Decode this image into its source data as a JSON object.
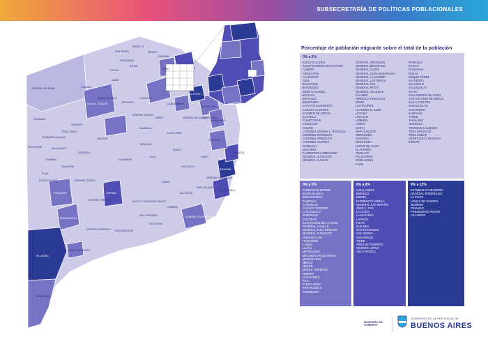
{
  "header": {
    "title": "SUBSECRETARÍA DE POLÍTICAS POBLACIONALES"
  },
  "legend": {
    "title": "Porcentaje de población migrante sobre el total de la población",
    "categories": [
      {
        "range": "0% a 2%",
        "color": "#cdcbe8",
        "columns": [
          [
            "ADOLFO ALSINA",
            "ADOLFO GONZALES CHAVES",
            "ALBERTI",
            "ARRECIFES",
            "AYACUCHO",
            "AZUL",
            "BALCARCE",
            "BARADERO",
            "BENITO JUÁREZ",
            "BOLÍVAR",
            "BRAGADO",
            "BRANDSEN",
            "CAPITÁN SARMIENTO",
            "CARLOS CASARES",
            "CARMEN DE ARECO",
            "CASTELLI",
            "CHASCOMÚS",
            "CHIVILCOY",
            "COLÓN",
            "CORONEL MARINA L. ROSALES",
            "CORONEL DORREGO",
            "CORONEL PRINGLES",
            "CORONEL SUÁREZ",
            "DAIREAUX",
            "DOLORES",
            "FLORENTINO AMEGHINO",
            "GENERAL ALVARADO",
            "GENERAL ALVEAR"
          ],
          [
            "GENERAL ARENALES",
            "GENERAL BELGRANO",
            "GENERAL GUIDO",
            "GENERAL JUAN MADARIAGA",
            "GENERAL LA MADRID",
            "GENERAL LAS HERAS",
            "GENERAL PAZ",
            "GENERAL PINTO",
            "GENERAL VILLEGAS",
            "GUAMINÍ",
            "HIPÓLITO YRIGOYEN",
            "JUNÍN",
            "LAS FLORES",
            "LEANDRO N. ALEM",
            "LOZAMA",
            "LINCOLN",
            "LOBERÍA",
            "LOBOS",
            "MAIPÚ",
            "MAR CHIQUITA",
            "MERCEDES",
            "NAVARRO",
            "NECOCHEA",
            "NUEVE DE JULIO",
            "OLAVARRÍA",
            "PEHUAJÓ",
            "PELLEGRINI",
            "PERGAMINO",
            "PUÁN"
          ],
          [
            "RAMALLO",
            "RAUCH",
            "RIVADAVIA",
            "ROJAS",
            "ROQUE PÉREZ",
            "SAAVEDRA",
            "SALADILLO",
            "SALLIQUELÓ",
            "SALTO",
            "SAN ANDRÉS DE GILES",
            "SAN ANTONIO DE ARECO",
            "SAN CAYETANO",
            "SAN NICOLÁS",
            "SAN PEDRO",
            "SUIPACHA",
            "TANDIL",
            "TAPALQUÉ",
            "TORDILLO",
            "TRENQUE LAUQUEN",
            "TRES ARROYOS",
            "TRES LOMAS",
            "VEINTICINCO DE MAYO",
            "ZÁRATE"
          ]
        ]
      },
      {
        "range": "3% a 5%",
        "color": "#7672c4",
        "columns": [
          [
            "ALMIRANTE BROWN",
            "BAHÍA BLANCA",
            "BERAZATEGUI",
            "CAMPANA",
            "CAÑUELAS",
            "CARLOS TEJEDOR",
            "CHACABUCO",
            "ENSENADA",
            "ESCOBAR",
            "EXALTACIÓN DE LA CRUZ",
            "GENERAL LAVALLE",
            "GENERAL PUEYRREDÓN",
            "GENERAL VIAMONTE",
            "HURLINGHAM",
            "ITUZAINGÓ",
            "LANÚS",
            "LUJÁN",
            "MAGDALENA",
            "MALVINAS ARGENTINAS",
            "MARCOS PAZ",
            "MERLO",
            "MONTE",
            "MONTE HERMOSO",
            "MORÓN",
            "PATAGONES",
            "PILA",
            "PUNTA INDIO",
            "SAN VICENTE",
            "TORNQUIST"
          ]
        ]
      },
      {
        "range": "6% a 8%",
        "color": "#4f4cb3",
        "columns": [
          [
            "AVELLANEDA",
            "BERISSO",
            "EZEIZA",
            "FLORENCIO VARELA",
            "GENERAL SAN MARTÍN",
            "JOSÉ C. PAZ",
            "LA COSTA",
            "LA MATANZA",
            "LAPRIDA",
            "PILAR",
            "QUILMES",
            "SAN FERNANDO",
            "SAN ISIDRO",
            "SAN MIGUEL",
            "TIGRE",
            "TRES DE FEBRERO",
            "VICENTE LÓPEZ",
            "VILLA GESELL"
          ]
        ]
      },
      {
        "range": "9% a 12%",
        "color": "#2b3a94",
        "columns": [
          [
            "ESTEBAN ECHEVERRÍA",
            "GENERAL RODRÍGUEZ",
            "LA PLATA",
            "LOMAS DE ZAMORA",
            "MORENO",
            "PINAMAR",
            "PRESIDENTE PERÓN",
            "VILLARINO"
          ]
        ]
      }
    ]
  },
  "map_labels": [
    {
      "text": "SAN PEDRO"
    },
    {
      "text": "RAMALLO"
    },
    {
      "text": "PERGAMINO"
    },
    {
      "text": "ROJAS"
    },
    {
      "text": "COLÓN"
    },
    {
      "text": "ZÁRATE"
    },
    {
      "text": "CAMPANA"
    },
    {
      "text": "LUJÁN"
    },
    {
      "text": "JUNÍN"
    },
    {
      "text": "LINCOLN"
    },
    {
      "text": "GENERAL VILLEGAS"
    },
    {
      "text": "CARLOS TEJEDOR"
    },
    {
      "text": "RIVADAVIA"
    },
    {
      "text": "TRENQUE LAUQUEN"
    },
    {
      "text": "PELLEGRINI"
    },
    {
      "text": "SALLIQUELÓ"
    },
    {
      "text": "PEHUAJÓ"
    },
    {
      "text": "NUEVE DE JULIO"
    },
    {
      "text": "BRAGADO"
    },
    {
      "text": "CHIVILCOY"
    },
    {
      "text": "SALADILLO"
    },
    {
      "text": "LOBOS"
    },
    {
      "text": "CAÑUELAS"
    },
    {
      "text": "BOLÍVAR"
    },
    {
      "text": "OLAVARRÍA"
    },
    {
      "text": "AZUL"
    },
    {
      "text": "LAS FLORES"
    },
    {
      "text": "CHASCOMÚS"
    },
    {
      "text": "DOLORES"
    },
    {
      "text": "MAIPÚ"
    },
    {
      "text": "LA COSTA"
    },
    {
      "text": "PINAMAR"
    },
    {
      "text": "VILLA GESELL"
    },
    {
      "text": "GUAMINÍ"
    },
    {
      "text": "PUÁN"
    },
    {
      "text": "SAAVEDRA"
    },
    {
      "text": "LAPRIDA"
    },
    {
      "text": "TANDIL"
    },
    {
      "text": "BALCARCE"
    },
    {
      "text": "MAR CHIQUITA"
    },
    {
      "text": "GENERAL PUEYRREDÓN"
    },
    {
      "text": "NECOCHEA"
    },
    {
      "text": "TRES ARROYOS"
    },
    {
      "text": "CORONEL DORREGO"
    },
    {
      "text": "BAHÍA BLANCA"
    },
    {
      "text": "TORNQUIST"
    },
    {
      "text": "VILLARINO"
    },
    {
      "text": "PATAGONES"
    },
    {
      "text": "MONTE HERMOSO"
    },
    {
      "text": "CORONEL SUÁREZ"
    },
    {
      "text": "LA PLATA"
    },
    {
      "text": "MAGDALENA"
    },
    {
      "text": "PUNTA INDIO"
    },
    {
      "text": "MONTE"
    },
    {
      "text": "GENERAL BELGRANO"
    },
    {
      "text": "ADOLFO ALSINA"
    },
    {
      "text": "DAIREAUX"
    },
    {
      "text": "TRES LOMAS"
    },
    {
      "text": "CORONEL PRINGLES"
    },
    {
      "text": "ADOLFO GONZALES CHAVES"
    },
    {
      "text": "SAN CAYETANO"
    },
    {
      "text": "LOBERÍA"
    },
    {
      "text": "AYACUCHO"
    },
    {
      "text": "RAUCH"
    },
    {
      "text": "GENERAL MADARIAGA"
    },
    {
      "text": "TAPALQUÉ"
    },
    {
      "text": "GENERAL ALVEAR"
    }
  ],
  "footer": {
    "ministry": "MINISTERIO DE GOBIERNO",
    "government": "GOBIERNO DE LA PROVINCIA DE",
    "brand": "BUENOS AIRES"
  }
}
